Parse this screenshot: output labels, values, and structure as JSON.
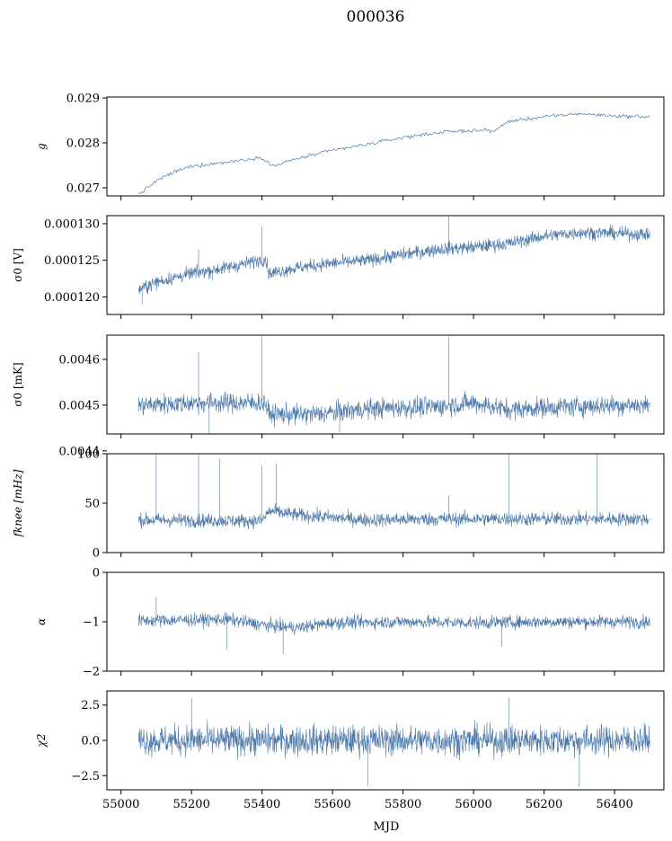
{
  "figure": {
    "title": "000036",
    "xlabel": "MJD",
    "line_color": "#4c78a8"
  },
  "chart_data": [
    {
      "type": "line",
      "ylabel": "g",
      "ylabel_math": true,
      "xlim": [
        54960,
        56540
      ],
      "ylim": [
        0.02682,
        0.02902
      ],
      "xticks": [],
      "yticks": [
        0.027,
        0.028,
        0.029
      ],
      "ytick_labels": [
        "0.027",
        "0.028",
        "0.029"
      ],
      "x_range": [
        55050,
        56500
      ],
      "profile": [
        [
          55050,
          0.02685
        ],
        [
          55100,
          0.02715
        ],
        [
          55150,
          0.02735
        ],
        [
          55200,
          0.02748
        ],
        [
          55300,
          0.02757
        ],
        [
          55400,
          0.02768
        ],
        [
          55430,
          0.02748
        ],
        [
          55500,
          0.02765
        ],
        [
          55600,
          0.02783
        ],
        [
          55700,
          0.02797
        ],
        [
          55800,
          0.02812
        ],
        [
          55900,
          0.02823
        ],
        [
          56000,
          0.02828
        ],
        [
          56060,
          0.02827
        ],
        [
          56100,
          0.02848
        ],
        [
          56200,
          0.02858
        ],
        [
          56300,
          0.02865
        ],
        [
          56400,
          0.0286
        ],
        [
          56500,
          0.02858
        ]
      ],
      "noise": 4e-05,
      "dense": false
    },
    {
      "type": "line",
      "ylabel": "σ0 [V]",
      "ylabel_math": false,
      "xlim": [
        54960,
        56540
      ],
      "ylim": [
        0.0001176,
        0.0001311
      ],
      "xticks": [],
      "yticks": [
        0.00012,
        0.000125,
        0.00013
      ],
      "ytick_labels": [
        "0.000120",
        "0.000125",
        "0.000130"
      ],
      "x_range": [
        55050,
        56500
      ],
      "profile": [
        [
          55050,
          0.000121
        ],
        [
          55100,
          0.000122
        ],
        [
          55200,
          0.0001232
        ],
        [
          55300,
          0.000124
        ],
        [
          55410,
          0.0001252
        ],
        [
          55420,
          0.0001232
        ],
        [
          55500,
          0.000124
        ],
        [
          55600,
          0.0001246
        ],
        [
          55700,
          0.000125
        ],
        [
          55800,
          0.0001258
        ],
        [
          55900,
          0.0001265
        ],
        [
          56000,
          0.0001268
        ],
        [
          56100,
          0.0001273
        ],
        [
          56200,
          0.0001283
        ],
        [
          56300,
          0.0001288
        ],
        [
          56400,
          0.0001287
        ],
        [
          56500,
          0.0001285
        ]
      ],
      "noise": 9e-07,
      "dense": true,
      "spikes": [
        [
          55220,
          0.0001265
        ],
        [
          55260,
          0.0001222
        ],
        [
          55400,
          0.0001296
        ],
        [
          55930,
          0.000131
        ],
        [
          55060,
          0.000119
        ]
      ]
    },
    {
      "type": "line",
      "ylabel": "σ0 [mK]",
      "ylabel_math": false,
      "xlim": [
        54960,
        56540
      ],
      "ylim": [
        0.004437,
        0.004653
      ],
      "xticks": [],
      "yticks": [
        0.0044,
        0.0045,
        0.0046
      ],
      "ytick_labels": [
        "0.0044",
        "0.0045",
        "0.0046"
      ],
      "x_range": [
        55050,
        56500
      ],
      "profile": [
        [
          55050,
          0.0045
        ],
        [
          55200,
          0.004505
        ],
        [
          55300,
          0.004505
        ],
        [
          55410,
          0.004505
        ],
        [
          55420,
          0.00448
        ],
        [
          55550,
          0.00448
        ],
        [
          55700,
          0.004492
        ],
        [
          55900,
          0.004497
        ],
        [
          56000,
          0.004505
        ],
        [
          56100,
          0.00449
        ],
        [
          56200,
          0.004495
        ],
        [
          56400,
          0.0045
        ],
        [
          56500,
          0.0045
        ]
      ],
      "noise": 2.2e-05,
      "dense": true,
      "spikes": [
        [
          55220,
          0.004615
        ],
        [
          55250,
          0.004435
        ],
        [
          55400,
          0.00465
        ],
        [
          55930,
          0.00465
        ],
        [
          55620,
          0.00444
        ]
      ]
    },
    {
      "type": "line",
      "ylabel": "fknee [mHz]",
      "ylabel_math": true,
      "xlim": [
        54960,
        56540
      ],
      "ylim": [
        0,
        100
      ],
      "xticks": [],
      "yticks": [
        0,
        50,
        100
      ],
      "ytick_labels": [
        "0",
        "50",
        "100"
      ],
      "x_range": [
        55050,
        56500
      ],
      "profile": [
        [
          55050,
          33
        ],
        [
          55400,
          32
        ],
        [
          55420,
          42
        ],
        [
          55500,
          38
        ],
        [
          55700,
          33
        ],
        [
          55900,
          34
        ],
        [
          56100,
          34
        ],
        [
          56300,
          34
        ],
        [
          56500,
          34
        ]
      ],
      "noise": 7,
      "dense": true,
      "spikes": [
        [
          55100,
          100
        ],
        [
          55220,
          100
        ],
        [
          55280,
          95
        ],
        [
          55400,
          88
        ],
        [
          55440,
          90
        ],
        [
          55930,
          58
        ],
        [
          56100,
          100
        ],
        [
          56350,
          100
        ]
      ]
    },
    {
      "type": "line",
      "ylabel": "α",
      "ylabel_math": true,
      "xlim": [
        54960,
        56540
      ],
      "ylim": [
        -2,
        0
      ],
      "xticks": [],
      "yticks": [
        -2,
        -1,
        0
      ],
      "ytick_labels": [
        "−2",
        "−1",
        "0"
      ],
      "x_range": [
        55050,
        56500
      ],
      "profile": [
        [
          55050,
          -0.98
        ],
        [
          55300,
          -0.95
        ],
        [
          55420,
          -1.08
        ],
        [
          55500,
          -1.12
        ],
        [
          55600,
          -1.02
        ],
        [
          55800,
          -1.0
        ],
        [
          56000,
          -1.02
        ],
        [
          56200,
          -1.0
        ],
        [
          56500,
          -1.0
        ]
      ],
      "noise": 0.13,
      "dense": true,
      "spikes": [
        [
          55100,
          -0.5
        ],
        [
          55300,
          -1.55
        ],
        [
          55460,
          -1.65
        ],
        [
          56080,
          -1.5
        ]
      ]
    },
    {
      "type": "line",
      "ylabel": "χ2",
      "ylabel_math": true,
      "xlim": [
        54960,
        56540
      ],
      "ylim": [
        -3.5,
        3.5
      ],
      "xticks": [
        55000,
        55200,
        55400,
        55600,
        55800,
        56000,
        56200,
        56400
      ],
      "xtick_labels": [
        "55000",
        "55200",
        "55400",
        "55600",
        "55800",
        "56000",
        "56200",
        "56400"
      ],
      "yticks": [
        -2.5,
        0.0,
        2.5
      ],
      "ytick_labels": [
        "−2.5",
        "0.0",
        "2.5"
      ],
      "x_range": [
        55050,
        56500
      ],
      "profile": [
        [
          55050,
          0.0
        ],
        [
          56500,
          0.0
        ]
      ],
      "noise": 1.05,
      "dense": true,
      "spikes": [
        [
          55200,
          3.0
        ],
        [
          55700,
          -3.2
        ],
        [
          56100,
          3.0
        ],
        [
          56300,
          -3.3
        ]
      ]
    }
  ]
}
